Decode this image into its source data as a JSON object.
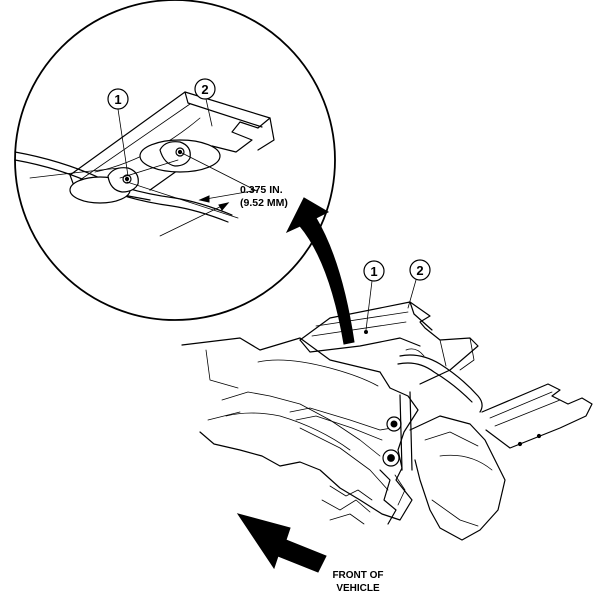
{
  "callouts": {
    "detail_item_1": "1",
    "detail_item_2": "2",
    "main_item_1": "1",
    "main_item_2": "2"
  },
  "dimension": {
    "imperial": "0.375 IN.",
    "metric": "(9.52 MM)"
  },
  "direction": {
    "line1": "FRONT OF",
    "line2": "VEHICLE"
  },
  "colors": {
    "ink": "#000000",
    "paper": "#ffffff"
  }
}
